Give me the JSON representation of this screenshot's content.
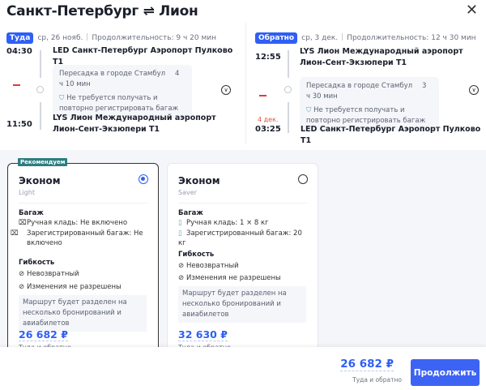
{
  "header": {
    "title": "Санкт-Петербург ⇌ Лион",
    "close_icon": "close-icon"
  },
  "outbound": {
    "badge": "Туда",
    "date": "ср, 26 нояб.",
    "duration": "Продолжительность: 9 ч 20 мин",
    "dep_time": "04:30",
    "dep_place": "LED Санкт-Петербург Аэропорт Пулково T1",
    "transfer": "Пересадка в городе Стамбул",
    "transfer_dur": "4 ч 10 мин",
    "baggage_note": "Не требуется получать и повторно регистрировать багаж",
    "arr_time": "11:50",
    "arr_place": "LYS Лион Международный аэропорт Лион-Сент-Экзюпери T1"
  },
  "inbound": {
    "badge": "Обратно",
    "date": "ср, 3 дек.",
    "duration": "Продолжительность: 12 ч 30 мин",
    "dep_time": "12:55",
    "dep_place": "LYS Лион Международный аэропорт Лион-Сент-Экзюпери T1",
    "transfer": "Пересадка в городе Стамбул",
    "transfer_dur": "3 ч 30 мин",
    "baggage_note": "Не требуется получать и повторно регистрировать багаж",
    "arr_date": "4 дек.",
    "arr_time": "03:25",
    "arr_place": "LED Санкт-Петербург Аэропорт Пулково T1"
  },
  "fares": [
    {
      "badge": "Рекомендуем",
      "name": "Эконом",
      "sub": "Light",
      "selected": true,
      "baggage_title": "Багаж",
      "hand": "Ручная кладь: Не включено",
      "checked": "Зарегистрированный багаж: Не включено",
      "flex_title": "Гибкость",
      "refund": "Невозвратный",
      "changes": "Изменения не разрешены",
      "note": "Маршрут будет разделен на несколько бронирований и авиабилетов",
      "price": "26 682 ₽",
      "price_note": "Туда и обратно"
    },
    {
      "name": "Эконом",
      "sub": "Saver",
      "selected": false,
      "baggage_title": "Багаж",
      "hand": "Ручная кладь: 1 × 8 кг",
      "checked": "Зарегистрированный багаж: 20 кг",
      "flex_title": "Гибкость",
      "refund": "Невозвратный",
      "changes": "Изменения не разрешены",
      "note": "Маршрут будет разделен на несколько бронирований и авиабилетов",
      "price": "32 630 ₽",
      "price_note": "Туда и обратно"
    }
  ],
  "footer": {
    "price": "26 682 ₽",
    "price_note": "Туда и обратно",
    "continue": "Продолжить"
  },
  "colors": {
    "accent": "#2f5ff5",
    "recommend": "#2e7d80",
    "date_change": "#e0563a"
  }
}
